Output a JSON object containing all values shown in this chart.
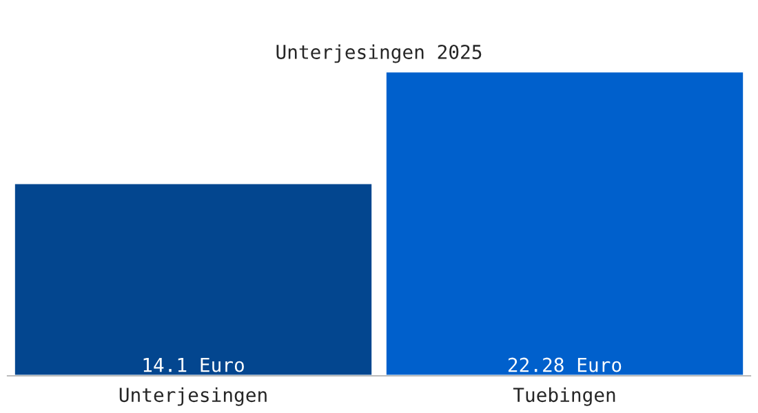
{
  "chart_data": {
    "type": "bar",
    "title": "Unterjesingen 2025",
    "categories": [
      "Unterjesingen",
      "Tuebingen"
    ],
    "values": [
      14.1,
      22.28
    ],
    "colors": [
      "#03468f",
      "#0060cc"
    ],
    "value_labels": [
      "14.1 Euro",
      "22.28 Euro"
    ],
    "grid": false,
    "legend": false
  }
}
